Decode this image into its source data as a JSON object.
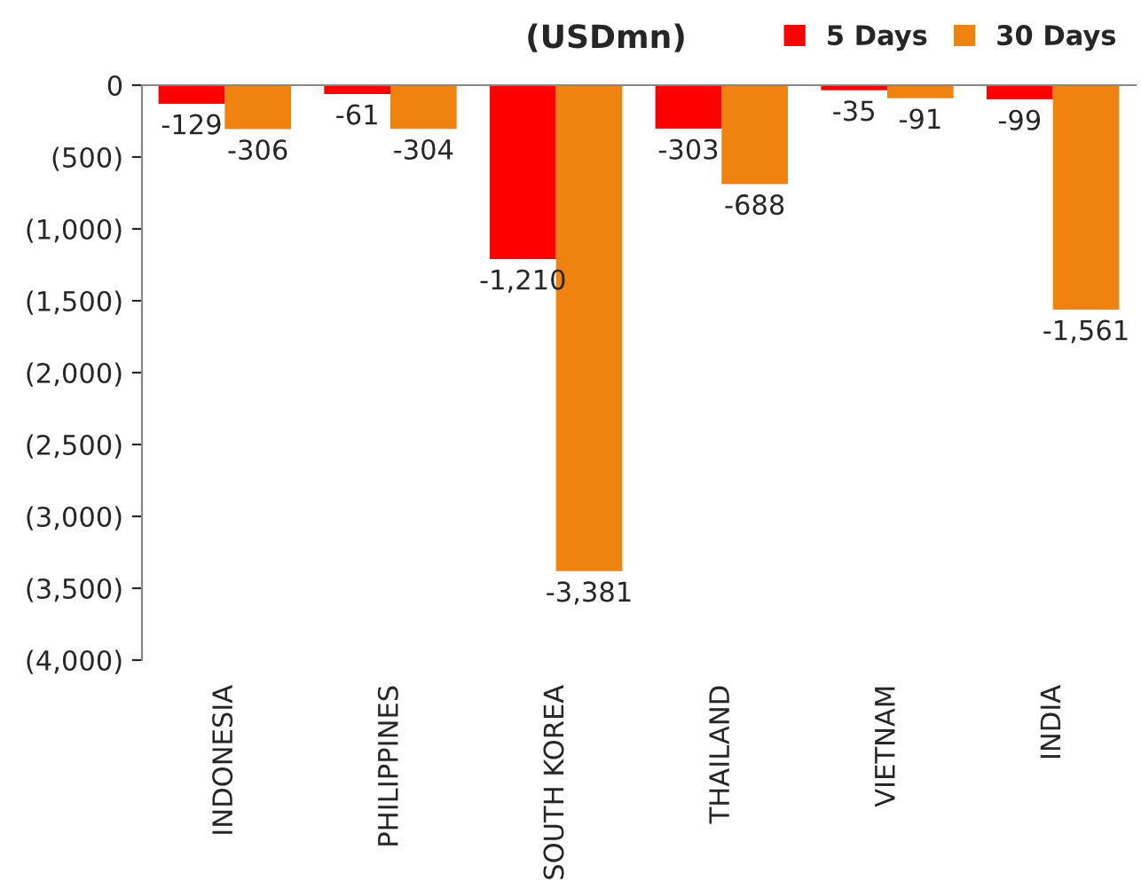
{
  "chart_data": {
    "type": "bar",
    "title": "(USDmn)",
    "categories": [
      "INDONESIA",
      "PHILIPPINES",
      "SOUTH KOREA",
      "THAILAND",
      "VIETNAM",
      "INDIA"
    ],
    "series": [
      {
        "name": "5 Days",
        "color": "#ff0000",
        "values": [
          -129,
          -61,
          -1210,
          -303,
          -35,
          -99
        ],
        "value_labels": [
          "-129",
          "-61",
          "-1,210",
          "-303",
          "-35",
          "-99"
        ]
      },
      {
        "name": "30 Days",
        "color": "#f0820f",
        "values": [
          -306,
          -304,
          -3381,
          -688,
          -91,
          -1561
        ],
        "value_labels": [
          "-306",
          "-304",
          "-3,381",
          "-688",
          "-91",
          "-1,561"
        ]
      }
    ],
    "ylim": [
      -4000,
      0
    ],
    "yticks": [
      {
        "value": -4000,
        "label": "(4,000)"
      },
      {
        "value": -3500,
        "label": "(3,500)"
      },
      {
        "value": -3000,
        "label": "(3,000)"
      },
      {
        "value": -2500,
        "label": "(2,500)"
      },
      {
        "value": -2000,
        "label": "(2,000)"
      },
      {
        "value": -1500,
        "label": "(1,500)"
      },
      {
        "value": -1000,
        "label": "(1,000)"
      },
      {
        "value": -500,
        "label": "(500)"
      },
      0
    ],
    "grid": false,
    "legend": "top right"
  }
}
